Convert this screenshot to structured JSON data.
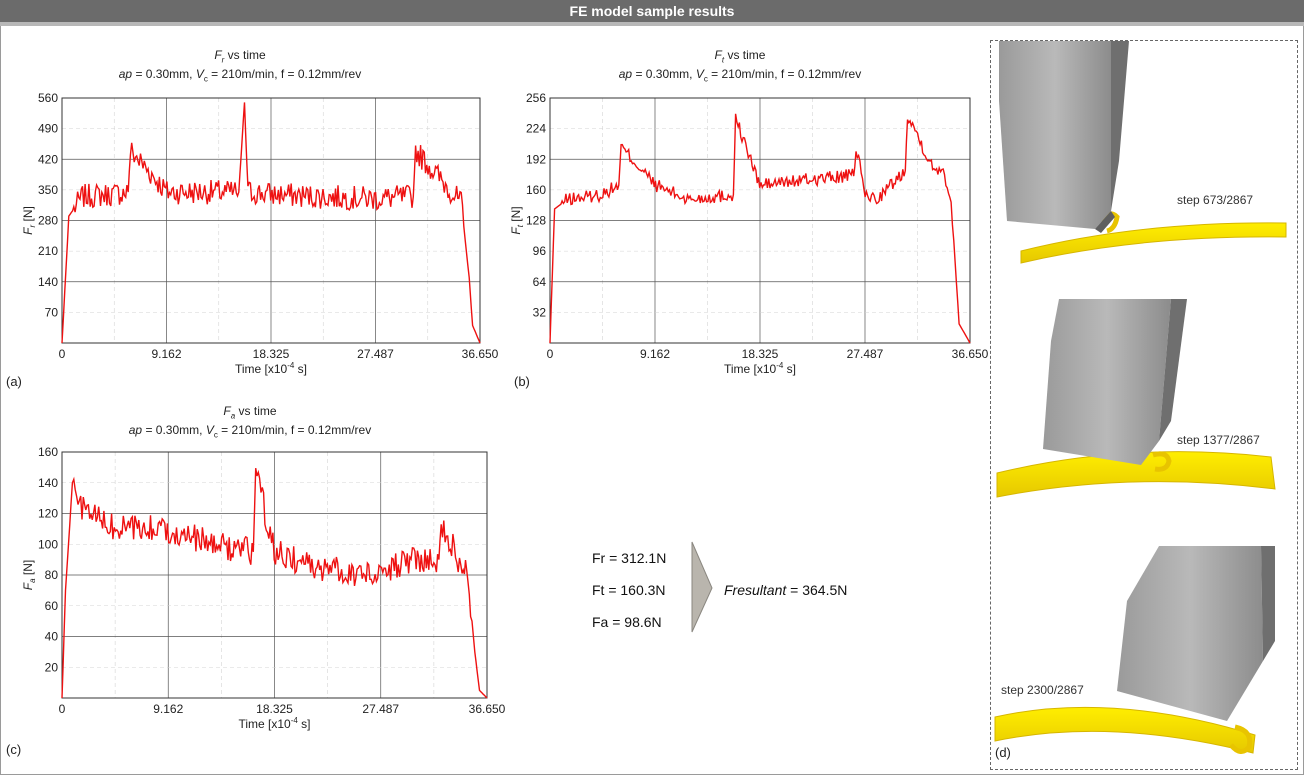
{
  "header": {
    "title": "FE model sample results"
  },
  "panels": [
    {
      "letter": "(a)",
      "title_sym": "F",
      "title_sub": "r",
      "title_rest": " vs time",
      "subtitle": "ap = 0.30mm, V",
      "subtitle_sub": "c",
      "subtitle_rest": " = 210m/min, f = 0.12mm/rev",
      "ylabel_sym": "F",
      "ylabel_sub": "r",
      "ylabel_unit": " [N]",
      "xlabel": "Time [x10",
      "xlabel_sup": "-4",
      "xlabel_rest": " s]"
    },
    {
      "letter": "(b)",
      "title_sym": "F",
      "title_sub": "t",
      "title_rest": " vs time",
      "subtitle": "ap = 0.30mm, V",
      "subtitle_sub": "c",
      "subtitle_rest": " = 210m/min, f = 0.12mm/rev",
      "ylabel_sym": "F",
      "ylabel_sub": "t",
      "ylabel_unit": " [N]",
      "xlabel": "Time [x10",
      "xlabel_sup": "-4",
      "xlabel_rest": " s]"
    },
    {
      "letter": "(c)",
      "title_sym": "F",
      "title_sub": "a",
      "title_rest": " vs time",
      "subtitle": "ap = 0.30mm, V",
      "subtitle_sub": "c",
      "subtitle_rest": " = 210m/min, f = 0.12mm/rev",
      "ylabel_sym": "F",
      "ylabel_sub": "a",
      "ylabel_unit": " [N]",
      "xlabel": "Time [x10",
      "xlabel_sup": "-4",
      "xlabel_rest": " s]"
    }
  ],
  "summary": {
    "fr": "Fr = 312.1N",
    "ft": "Ft = 160.3N",
    "fa": "Fa =  98.6N",
    "resultant_label": "Fresultant",
    "resultant_value": " = 364.5N"
  },
  "simulation": {
    "letter": "(d)",
    "steps": [
      "step 673/2867",
      "step 1377/2867",
      "step 2300/2867"
    ]
  },
  "chart_data": [
    {
      "type": "line",
      "series": [
        {
          "values_description": "Fr force signal",
          "color": "#ee1111",
          "x": [
            0,
            0.6,
            1.8,
            4.5,
            5.8,
            6.0,
            9.2,
            15.5,
            16.0,
            16.3,
            18.3,
            22.0,
            27.5,
            30.8,
            31.0,
            34.5,
            35.0,
            35.7,
            36.0,
            36.65
          ],
          "y": [
            0,
            290,
            335,
            340,
            345,
            440,
            345,
            345,
            550,
            345,
            340,
            335,
            330,
            335,
            440,
            335,
            320,
            150,
            40,
            0
          ]
        }
      ],
      "xticks": [
        "0",
        "9.162",
        "18.325",
        "27.487",
        "36.650"
      ],
      "yticks": [
        "70",
        "140",
        "210",
        "280",
        "350",
        "420",
        "490",
        "560"
      ],
      "xlim": [
        0,
        36.65
      ],
      "ylim": [
        0,
        560
      ],
      "grid": true
    },
    {
      "type": "line",
      "series": [
        {
          "values_description": "Ft force signal",
          "color": "#ee1111",
          "x": [
            0,
            0.4,
            1.5,
            4.5,
            6.0,
            6.2,
            9.2,
            12.0,
            16.0,
            16.2,
            18.3,
            22.0,
            26.5,
            26.7,
            27.5,
            28.5,
            31.0,
            31.2,
            33.5,
            34.2,
            35.0,
            35.7,
            36.65
          ],
          "y": [
            0,
            140,
            150,
            155,
            165,
            205,
            165,
            150,
            155,
            235,
            165,
            170,
            175,
            205,
            155,
            150,
            180,
            240,
            180,
            185,
            150,
            20,
            0
          ]
        }
      ],
      "xticks": [
        "0",
        "9.162",
        "18.325",
        "27.487",
        "36.650"
      ],
      "yticks": [
        "32",
        "64",
        "96",
        "128",
        "160",
        "192",
        "224",
        "256"
      ],
      "xlim": [
        0,
        36.65
      ],
      "ylim": [
        0,
        256
      ],
      "grid": true
    },
    {
      "type": "line",
      "series": [
        {
          "values_description": "Fa force signal",
          "color": "#ee1111",
          "x": [
            0,
            0.3,
            0.9,
            1.5,
            4.5,
            9.2,
            13.0,
            16.5,
            16.7,
            18.3,
            22.0,
            27.0,
            30.0,
            32.5,
            32.7,
            34.5,
            35.0,
            35.6,
            36.0,
            36.65
          ],
          "y": [
            0,
            70,
            140,
            125,
            110,
            110,
            100,
            95,
            148,
            95,
            85,
            80,
            90,
            90,
            115,
            85,
            80,
            30,
            5,
            0
          ]
        }
      ],
      "xticks": [
        "0",
        "9.162",
        "18.325",
        "27.487",
        "36.650"
      ],
      "yticks": [
        "20",
        "40",
        "60",
        "80",
        "100",
        "120",
        "140",
        "160"
      ],
      "xlim": [
        0,
        36.65
      ],
      "ylim": [
        0,
        160
      ],
      "grid": true
    }
  ]
}
